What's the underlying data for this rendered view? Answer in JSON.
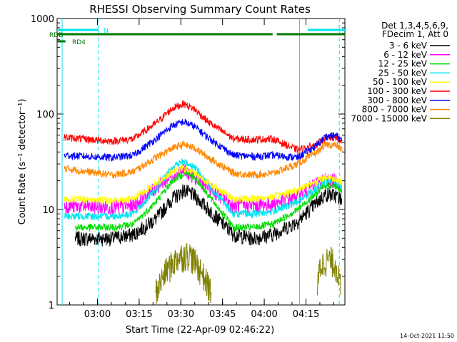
{
  "chart_data": {
    "type": "line",
    "title": "RHESSI Observing Summary Count Rates",
    "xlabel": "Start Time (22-Apr-09 02:46:22)",
    "ylabel": "Count Rate (s⁻¹ detector⁻¹)",
    "yscale": "log",
    "ylim": [
      1,
      1000
    ],
    "xlim_minutes_of_day": [
      165.5,
      269.0
    ],
    "x_ticks": [
      {
        "label": "03:00",
        "min": 180
      },
      {
        "label": "03:15",
        "min": 195
      },
      {
        "label": "03:30",
        "min": 210
      },
      {
        "label": "03:45",
        "min": 225
      },
      {
        "label": "04:00",
        "min": 240
      },
      {
        "label": "04:15",
        "min": 255
      }
    ],
    "y_ticks": [
      {
        "label": "1",
        "v": 1
      },
      {
        "label": "10",
        "v": 10
      },
      {
        "label": "100",
        "v": 100
      },
      {
        "label": "1000",
        "v": 1000
      }
    ],
    "legend_header": [
      "Det 1,3,4,5,6,9,",
      "FDecim 1, Att 0"
    ],
    "legend_position": "right",
    "footer_timestamp": "14-Oct-2021 11:50",
    "flags": [
      {
        "label": "N",
        "color": "#00e5ee",
        "segments": [
          [
            165.5,
            180.4
          ],
          [
            255.6,
            269.0
          ]
        ]
      },
      {
        "label": "RDD",
        "color": "#007700",
        "segments": [
          [
            165.5,
            243.0
          ],
          [
            244.5,
            269.0
          ]
        ]
      },
      {
        "label": "RD4",
        "color": "#007700",
        "segments": [
          [
            165.5,
            168.5
          ]
        ]
      }
    ],
    "night_lines": [
      {
        "min": 167.3,
        "color": "#00e5ee",
        "style": "solid"
      },
      {
        "min": 180.4,
        "color": "#00e5ee",
        "style": "dashed"
      },
      {
        "min": 252.7,
        "color": "#00e5ee",
        "style": "solid"
      },
      {
        "min": 267.0,
        "color": "#00e5ee",
        "style": "dashed"
      }
    ],
    "series": [
      {
        "name": "3 - 6 keV",
        "color": "#000000",
        "x": [
          172,
          185,
          193,
          201,
          207,
          211,
          215,
          220,
          229,
          236,
          243,
          252,
          259,
          262,
          266,
          268
        ],
        "y": [
          5,
          5,
          5.5,
          8,
          13,
          16,
          14,
          10,
          5.5,
          5,
          5.5,
          7.5,
          12,
          14.5,
          14,
          12.5
        ]
      },
      {
        "name": "6 - 12 keV",
        "color": "#ff00ff",
        "x": [
          168,
          185,
          193,
          201,
          207,
          211,
          215,
          220,
          229,
          236,
          243,
          252,
          259,
          262,
          266,
          268
        ],
        "y": [
          11,
          10.5,
          11,
          17,
          23,
          26,
          22,
          17,
          11,
          11,
          11.5,
          14,
          19,
          21,
          20,
          17.5
        ]
      },
      {
        "name": "12 - 25 keV",
        "color": "#00dd00",
        "x": [
          172,
          185,
          193,
          201,
          207,
          211,
          215,
          220,
          229,
          236,
          243,
          252,
          259,
          262,
          266,
          268
        ],
        "y": [
          6.5,
          6.5,
          7,
          12,
          20,
          24,
          22,
          14,
          6.5,
          6.5,
          7,
          10,
          15,
          18,
          17.5,
          15
        ]
      },
      {
        "name": "25 - 50 keV",
        "color": "#00e5ee",
        "x": [
          168,
          185,
          193,
          201,
          207,
          211,
          215,
          220,
          229,
          236,
          243,
          252,
          259,
          262,
          266,
          268
        ],
        "y": [
          8.5,
          8.5,
          9,
          16,
          28,
          32,
          28,
          18,
          9,
          9,
          9.5,
          12,
          17,
          20,
          19.5,
          17
        ]
      },
      {
        "name": "50 - 100 keV",
        "color": "#ffff00",
        "x": [
          168,
          185,
          193,
          201,
          207,
          211,
          215,
          220,
          229,
          236,
          243,
          252,
          259,
          262,
          266,
          268
        ],
        "y": [
          13,
          12.5,
          13,
          19,
          25,
          27,
          24,
          19,
          13,
          13,
          13.5,
          16,
          20,
          22,
          21,
          19
        ]
      },
      {
        "name": "100 - 300 keV",
        "color": "#ff0000",
        "x": [
          168,
          185,
          193,
          201,
          207,
          211,
          215,
          220,
          229,
          236,
          243,
          252,
          259,
          262,
          266,
          268
        ],
        "y": [
          57,
          52,
          55,
          80,
          115,
          128,
          112,
          82,
          55,
          54,
          55,
          42,
          48,
          57,
          56,
          51
        ]
      },
      {
        "name": "300 - 800 keV",
        "color": "#0000ff",
        "x": [
          168,
          185,
          193,
          201,
          207,
          211,
          215,
          220,
          229,
          236,
          243,
          252,
          259,
          262,
          266,
          268
        ],
        "y": [
          37,
          35,
          37,
          55,
          76,
          83,
          74,
          56,
          37,
          36,
          37,
          35,
          47,
          58,
          60,
          52
        ]
      },
      {
        "name": "800 - 7000 keV",
        "color": "#ff8800",
        "x": [
          168,
          185,
          193,
          201,
          207,
          211,
          215,
          220,
          229,
          236,
          243,
          252,
          259,
          262,
          266,
          268
        ],
        "y": [
          27,
          23,
          25,
          35,
          44,
          48,
          44,
          35,
          24,
          23,
          24,
          30,
          40,
          48,
          47,
          42
        ]
      },
      {
        "name": "7000 - 15000 keV",
        "color": "#808000",
        "x": [
          201,
          205,
          209,
          213,
          217,
          221,
          259,
          260,
          262,
          264,
          266,
          267.5
        ],
        "y": [
          1.4,
          2.4,
          3.2,
          3.5,
          2.4,
          1.4,
          1.4,
          2.5,
          3,
          3,
          2.6,
          1.5
        ]
      }
    ]
  }
}
